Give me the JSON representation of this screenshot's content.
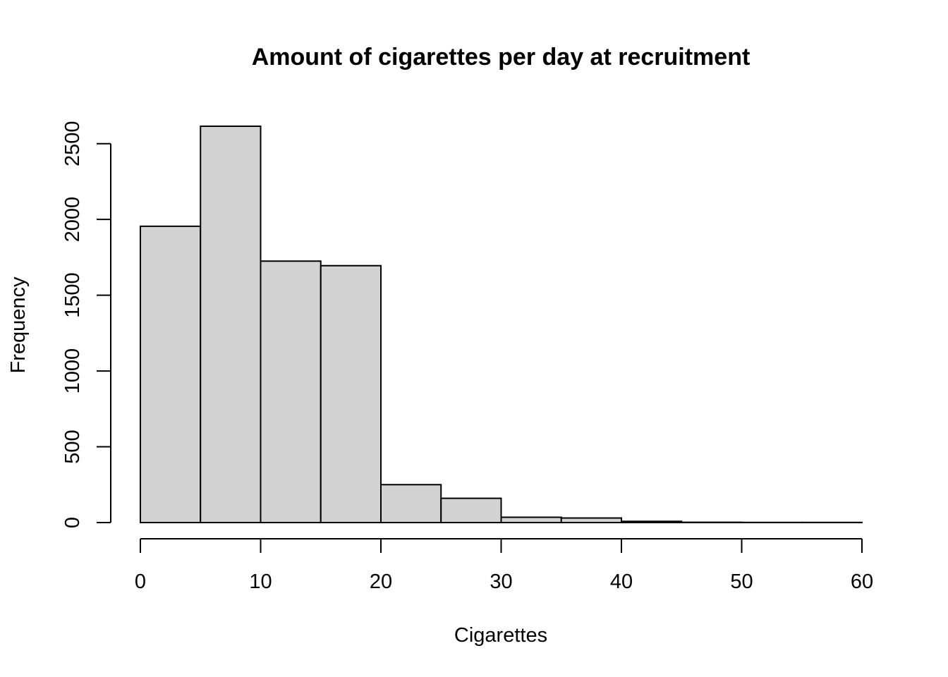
{
  "chart_data": {
    "type": "bar",
    "histogram": true,
    "title": "Amount of cigarettes per day at recruitment",
    "xlabel": "Cigarettes",
    "ylabel": "Frequency",
    "bin_edges": [
      0,
      5,
      10,
      15,
      20,
      25,
      30,
      35,
      40,
      45,
      50,
      55,
      60
    ],
    "categories": [
      "0-5",
      "5-10",
      "10-15",
      "15-20",
      "20-25",
      "25-30",
      "30-35",
      "35-40",
      "40-45",
      "45-50",
      "50-55",
      "55-60"
    ],
    "values": [
      1955,
      2615,
      1725,
      1695,
      250,
      160,
      35,
      30,
      8,
      2,
      1,
      1
    ],
    "xlim": [
      0,
      60
    ],
    "ylim": [
      0,
      2615
    ],
    "x_ticks": [
      "0",
      "10",
      "20",
      "30",
      "40",
      "50",
      "60"
    ],
    "y_ticks": [
      "0",
      "500",
      "1000",
      "1500",
      "2000",
      "2500"
    ],
    "bar_fill": "#d3d3d3",
    "bar_stroke": "#000000",
    "grid": false,
    "legend": "none"
  }
}
